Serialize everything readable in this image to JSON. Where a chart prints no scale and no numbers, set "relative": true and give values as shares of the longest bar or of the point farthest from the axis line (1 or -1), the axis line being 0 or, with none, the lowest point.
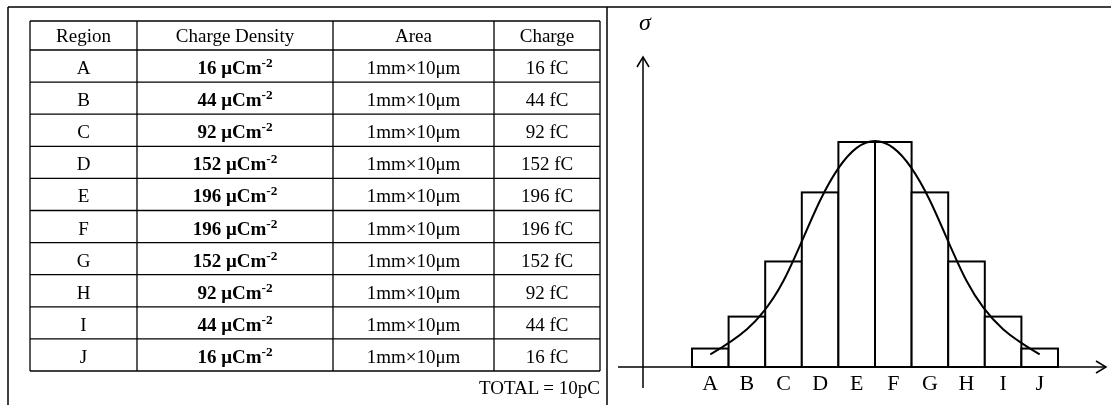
{
  "chart_data": {
    "type": "bar",
    "ylabel": "σ",
    "relative": true,
    "categories": [
      "A",
      "B",
      "C",
      "D",
      "E",
      "F",
      "G",
      "H",
      "I",
      "J"
    ],
    "values": [
      0.082,
      0.224,
      0.469,
      0.776,
      1,
      1,
      0.776,
      0.469,
      0.224,
      0.082
    ],
    "color": "#000000",
    "series": [
      {
        "type": "line",
        "color": "#000000",
        "values": [
          0.056,
          0.168,
          0.383,
          0.74,
          0.974,
          0.974,
          0.74,
          0.383,
          0.168,
          0.056
        ]
      }
    ],
    "tick_labels": "x",
    "annotations": [
      "Region",
      "Charge Density",
      "Area",
      "Charge",
      "16 μCm$^{-2}$",
      "44 μCm$^{-2}$",
      "92 μCm$^{-2}$",
      "152 μCm$^{-2}$",
      "196 μCm$^{-2}$",
      "196 μCm$^{-2}$",
      "152 μCm$^{-2}$",
      "92 μCm$^{-2}$",
      "44 μCm$^{-2}$",
      "16 μCm$^{-2}$",
      "1mm×10μm",
      "1mm×10μm",
      "1mm×10μm",
      "1mm×10μm",
      "1mm×10μm",
      "1mm×10μm",
      "1mm×10μm",
      "1mm×10μm",
      "1mm×10μm",
      "1mm×10μm",
      "16 fC",
      "44 fC",
      "92 fC",
      "152 fC",
      "196 fC",
      "196 fC",
      "152 fC",
      "92 fC",
      "44 fC",
      "16 fC",
      "TOTAL = 10pC"
    ]
  }
}
